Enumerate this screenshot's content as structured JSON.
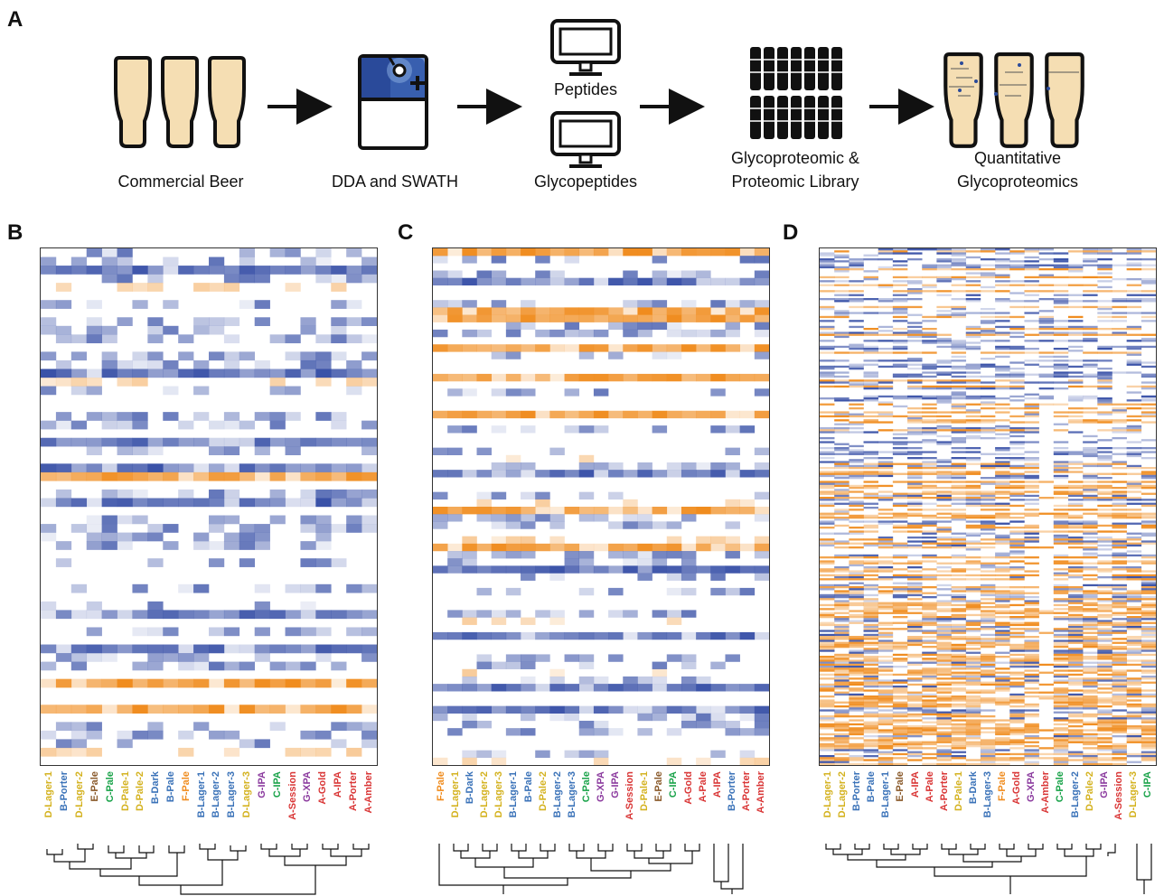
{
  "panels": {
    "a": "A",
    "b": "B",
    "c": "C",
    "d": "D"
  },
  "workflow": {
    "commercial_beer": "Commercial Beer",
    "dda_swath": "DDA and SWATH",
    "peptides": "Peptides",
    "glycopeptides": "Glycopeptides",
    "library_line1": "Glycoproteomic &",
    "library_line2": "Proteomic Library",
    "quant_line1": "Quantitative",
    "quant_line2": "Glycoproteomics"
  },
  "colors": {
    "brand_a": "#d93535",
    "brand_b": "#3a72b8",
    "brand_c": "#1aa34a",
    "brand_d": "#d4b21f",
    "brand_e": "#8a5a2b",
    "brand_f": "#f08c1e",
    "brand_g": "#8b3a9e",
    "heat_blue": "#3a52a8",
    "heat_orange": "#f08c1e",
    "beer": "#f5deb3",
    "tablet_blue": "#2a4a9a"
  },
  "heatmap_b": {
    "columns": [
      {
        "label": "D-Lager-1",
        "brand": "D"
      },
      {
        "label": "B-Porter",
        "brand": "B"
      },
      {
        "label": "D-Lager-2",
        "brand": "D"
      },
      {
        "label": "E-Pale",
        "brand": "E"
      },
      {
        "label": "C-Pale",
        "brand": "C"
      },
      {
        "label": "D-Pale-1",
        "brand": "D"
      },
      {
        "label": "D-Pale-2",
        "brand": "D"
      },
      {
        "label": "B-Dark",
        "brand": "B"
      },
      {
        "label": "B-Pale",
        "brand": "B"
      },
      {
        "label": "F-Pale",
        "brand": "F"
      },
      {
        "label": "B-Lager-1",
        "brand": "B"
      },
      {
        "label": "B-Lager-2",
        "brand": "B"
      },
      {
        "label": "B-Lager-3",
        "brand": "B"
      },
      {
        "label": "D-Lager-3",
        "brand": "D"
      },
      {
        "label": "G-IPA",
        "brand": "G"
      },
      {
        "label": "C-IPA",
        "brand": "C"
      },
      {
        "label": "A-Session",
        "brand": "A"
      },
      {
        "label": "G-XPA",
        "brand": "G"
      },
      {
        "label": "A-Gold",
        "brand": "A"
      },
      {
        "label": "A-IPA",
        "brand": "A"
      },
      {
        "label": "A-Porter",
        "brand": "A"
      },
      {
        "label": "A-Amber",
        "brand": "A"
      }
    ]
  },
  "heatmap_c": {
    "columns": [
      {
        "label": "F-Pale",
        "brand": "F"
      },
      {
        "label": "D-Lager-1",
        "brand": "D"
      },
      {
        "label": "B-Dark",
        "brand": "B"
      },
      {
        "label": "D-Lager-2",
        "brand": "D"
      },
      {
        "label": "D-Lager-3",
        "brand": "D"
      },
      {
        "label": "B-Lager-1",
        "brand": "B"
      },
      {
        "label": "B-Pale",
        "brand": "B"
      },
      {
        "label": "D-Pale-2",
        "brand": "D"
      },
      {
        "label": "B-Lager-2",
        "brand": "B"
      },
      {
        "label": "B-Lager-3",
        "brand": "B"
      },
      {
        "label": "C-Pale",
        "brand": "C"
      },
      {
        "label": "G-XPA",
        "brand": "G"
      },
      {
        "label": "G-IPA",
        "brand": "G"
      },
      {
        "label": "A-Session",
        "brand": "A"
      },
      {
        "label": "D-Pale-1",
        "brand": "D"
      },
      {
        "label": "E-Pale",
        "brand": "E"
      },
      {
        "label": "C-IPA",
        "brand": "C"
      },
      {
        "label": "A-Gold",
        "brand": "A"
      },
      {
        "label": "A-Pale",
        "brand": "A"
      },
      {
        "label": "A-IPA",
        "brand": "A"
      },
      {
        "label": "B-Porter",
        "brand": "B"
      },
      {
        "label": "A-Porter",
        "brand": "A"
      },
      {
        "label": "A-Amber",
        "brand": "A"
      }
    ]
  },
  "heatmap_d": {
    "columns": [
      {
        "label": "D-Lager-1",
        "brand": "D"
      },
      {
        "label": "D-Lager-2",
        "brand": "D"
      },
      {
        "label": "B-Porter",
        "brand": "B"
      },
      {
        "label": "B-Pale",
        "brand": "B"
      },
      {
        "label": "B-Lager-1",
        "brand": "B"
      },
      {
        "label": "E-Pale",
        "brand": "E"
      },
      {
        "label": "A-IPA",
        "brand": "A"
      },
      {
        "label": "A-Pale",
        "brand": "A"
      },
      {
        "label": "A-Porter",
        "brand": "A"
      },
      {
        "label": "D-Pale-1",
        "brand": "D"
      },
      {
        "label": "B-Dark",
        "brand": "B"
      },
      {
        "label": "B-Lager-3",
        "brand": "B"
      },
      {
        "label": "F-Pale",
        "brand": "F"
      },
      {
        "label": "A-Gold",
        "brand": "A"
      },
      {
        "label": "G-XPA",
        "brand": "G"
      },
      {
        "label": "A-Amber",
        "brand": "A"
      },
      {
        "label": "C-Pale",
        "brand": "C"
      },
      {
        "label": "B-Lager-2",
        "brand": "B"
      },
      {
        "label": "D-Pale-2",
        "brand": "D"
      },
      {
        "label": "G-IPA",
        "brand": "G"
      },
      {
        "label": "A-Session",
        "brand": "A"
      },
      {
        "label": "D-Lager-3",
        "brand": "D"
      },
      {
        "label": "C-IPA",
        "brand": "C"
      }
    ]
  }
}
